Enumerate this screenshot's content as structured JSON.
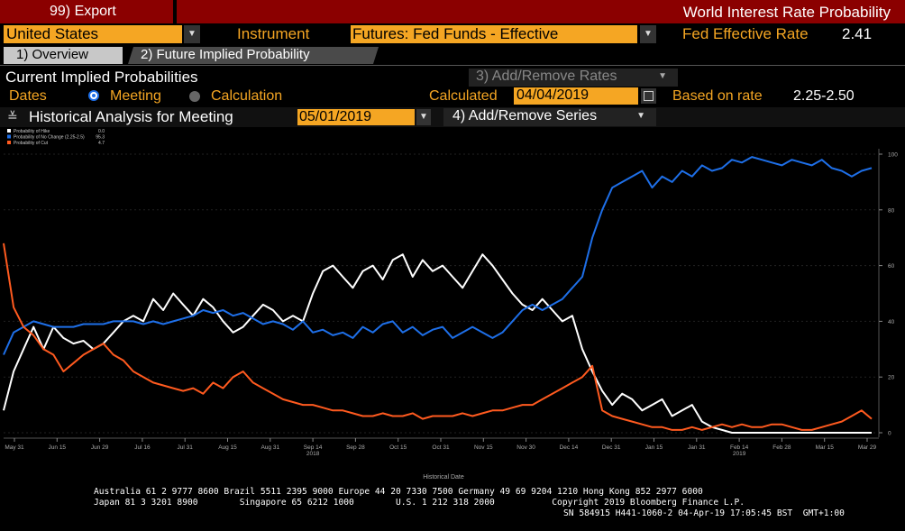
{
  "header": {
    "export_label": "99) Export",
    "title": "World Interest Rate Probability"
  },
  "controls": {
    "country": "United States",
    "instrument_label": "Instrument",
    "instrument_value": "Futures: Fed Funds - Effective",
    "fed_rate_label": "Fed Effective Rate",
    "fed_rate_value": "2.41"
  },
  "tabs": [
    {
      "label": "1) Overview"
    },
    {
      "label": "2) Future Implied Probability"
    }
  ],
  "section": {
    "title": "Current Implied Probabilities",
    "add_remove_rates": "3) Add/Remove Rates",
    "dates_label": "Dates",
    "meeting_label": "Meeting",
    "calculation_label": "Calculation",
    "calculated_label": "Calculated",
    "calculated_date": "04/04/2019",
    "based_on_label": "Based on rate",
    "based_on_value": "2.25-2.50",
    "historical_label": "Historical Analysis for Meeting",
    "meeting_date": "05/01/2019",
    "add_remove_series": "4) Add/Remove Series"
  },
  "legend": [
    {
      "name": "Probability of Hike",
      "value": "0.0",
      "color": "#ffffff"
    },
    {
      "name": "Probability of No Change (2.25-2.5)",
      "value": "95.3",
      "color": "#1e6fe8"
    },
    {
      "name": "Probability of Cut",
      "value": "4.7",
      "color": "#ff5a1f"
    }
  ],
  "chart_data": {
    "type": "line",
    "xlabel": "Historical Date",
    "x_ticks": [
      "May 31",
      "Jun 15",
      "Jun 29",
      "Jul 16",
      "Jul 31",
      "Aug 15",
      "Aug 31",
      "Sep 14",
      "Sep 28",
      "Oct 15",
      "Oct 31",
      "Nov 15",
      "Nov 30",
      "Dec 14",
      "Dec 31",
      "Jan 15",
      "Jan 31",
      "Feb 14",
      "Feb 28",
      "Mar 15",
      "Mar 29"
    ],
    "year_labels": [
      {
        "after": "Sep 14",
        "text": "2018"
      },
      {
        "after": "Feb 14",
        "text": "2019"
      }
    ],
    "y_ticks": [
      "100",
      "80",
      "60",
      "40",
      "20",
      "0"
    ],
    "ylim": [
      0,
      100
    ],
    "series": [
      {
        "name": "Probability of Hike",
        "color": "#ffffff",
        "values": [
          8,
          22,
          30,
          38,
          30,
          38,
          34,
          32,
          33,
          30,
          32,
          36,
          40,
          42,
          40,
          48,
          44,
          50,
          46,
          42,
          48,
          45,
          40,
          36,
          38,
          42,
          46,
          44,
          40,
          42,
          40,
          50,
          58,
          60,
          56,
          52,
          58,
          60,
          55,
          62,
          64,
          56,
          62,
          58,
          60,
          56,
          52,
          58,
          64,
          60,
          55,
          50,
          46,
          44,
          48,
          44,
          40,
          42,
          30,
          22,
          15,
          10,
          14,
          12,
          8,
          10,
          12,
          6,
          8,
          10,
          4,
          2,
          1,
          0,
          0,
          0,
          0,
          0,
          0,
          0,
          0,
          0,
          0,
          0,
          0,
          0,
          0,
          0
        ]
      },
      {
        "name": "Probability of No Change (2.25-2.5)",
        "color": "#1e6fe8",
        "values": [
          28,
          36,
          38,
          40,
          39,
          38,
          38,
          38,
          39,
          39,
          39,
          40,
          40,
          40,
          39,
          40,
          39,
          40,
          41,
          42,
          44,
          43,
          44,
          42,
          43,
          41,
          39,
          40,
          39,
          37,
          40,
          36,
          37,
          35,
          36,
          34,
          38,
          36,
          39,
          40,
          36,
          38,
          35,
          37,
          38,
          34,
          36,
          38,
          36,
          34,
          36,
          40,
          44,
          46,
          44,
          46,
          48,
          52,
          56,
          70,
          80,
          88,
          90,
          92,
          94,
          88,
          92,
          90,
          94,
          92,
          96,
          94,
          95,
          98,
          97,
          99,
          98,
          97,
          96,
          98,
          97,
          96,
          98,
          95,
          94,
          92,
          94,
          95
        ]
      },
      {
        "name": "Probability of Cut",
        "color": "#ff5a1f",
        "values": [
          68,
          45,
          38,
          35,
          30,
          28,
          22,
          25,
          28,
          30,
          32,
          28,
          26,
          22,
          20,
          18,
          17,
          16,
          15,
          16,
          14,
          18,
          16,
          20,
          22,
          18,
          16,
          14,
          12,
          11,
          10,
          10,
          9,
          8,
          8,
          7,
          6,
          6,
          7,
          6,
          6,
          7,
          5,
          6,
          6,
          6,
          7,
          6,
          7,
          8,
          8,
          9,
          10,
          10,
          12,
          14,
          16,
          18,
          20,
          24,
          8,
          6,
          5,
          4,
          3,
          2,
          2,
          1,
          1,
          2,
          1,
          2,
          3,
          2,
          3,
          2,
          2,
          3,
          3,
          2,
          1,
          1,
          2,
          3,
          4,
          6,
          8,
          5
        ]
      }
    ]
  },
  "footer": {
    "line1": "Australia 61 2 9777 8600 Brazil 5511 2395 9000 Europe 44 20 7330 7500 Germany 49 69 9204 1210 Hong Kong 852 2977 6000",
    "line2": "Japan 81 3 3201 8900        Singapore 65 6212 1000        U.S. 1 212 318 2000           Copyright 2019 Bloomberg Finance L.P.",
    "line3": "SN 584915 H441-1060-2 04-Apr-19 17:05:45 BST  GMT+1:00"
  }
}
